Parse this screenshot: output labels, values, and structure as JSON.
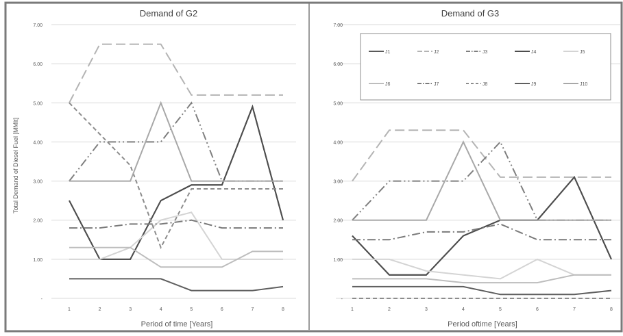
{
  "chart_data": [
    {
      "type": "line",
      "title": "Demand of G2",
      "xlabel": "Period of time [Years]",
      "ylabel": "Total Demand of Diesel Fuel [MMlt]",
      "x": [
        1,
        2,
        3,
        4,
        5,
        6,
        7,
        8
      ],
      "ylim": [
        0,
        7
      ],
      "yticks": [
        "-",
        "1.00",
        "2.00",
        "3.00",
        "4.00",
        "5.00",
        "6.00",
        "7.00"
      ],
      "grid": true,
      "series": [
        {
          "name": "J1",
          "values": [
            2.5,
            1.0,
            1.0,
            2.5,
            2.9,
            2.9,
            4.9,
            2.0
          ]
        },
        {
          "name": "J2",
          "values": [
            5.0,
            6.5,
            6.5,
            6.5,
            5.2,
            5.2,
            5.2,
            5.2
          ]
        },
        {
          "name": "J3",
          "values": [
            3.0,
            4.0,
            4.0,
            4.0,
            5.0,
            3.0,
            3.0,
            3.0
          ]
        },
        {
          "name": "J4",
          "values": [
            2.5,
            1.0,
            1.0,
            2.5,
            2.9,
            2.9,
            4.9,
            2.0
          ]
        },
        {
          "name": "J5",
          "values": [
            1.0,
            1.0,
            1.3,
            2.0,
            2.2,
            1.0,
            1.0,
            1.0
          ]
        },
        {
          "name": "J6",
          "values": [
            1.3,
            1.3,
            1.3,
            0.8,
            0.8,
            0.8,
            1.2,
            1.2
          ]
        },
        {
          "name": "J7",
          "values": [
            1.8,
            1.8,
            1.9,
            1.9,
            2.0,
            1.8,
            1.8,
            1.8
          ]
        },
        {
          "name": "J8",
          "values": [
            5.0,
            4.2,
            3.4,
            1.3,
            2.8,
            2.8,
            2.8,
            2.8
          ]
        },
        {
          "name": "J9",
          "values": [
            0.5,
            0.5,
            0.5,
            0.5,
            0.2,
            0.2,
            0.2,
            0.3
          ]
        },
        {
          "name": "J10",
          "values": [
            3.0,
            3.0,
            3.0,
            5.0,
            3.0,
            3.0,
            3.0,
            3.0
          ]
        }
      ]
    },
    {
      "type": "line",
      "title": "Demand of G3",
      "xlabel": "Period oftime [Years]",
      "ylabel": "",
      "x": [
        1,
        2,
        3,
        4,
        5,
        6,
        7,
        8
      ],
      "ylim": [
        0,
        7
      ],
      "yticks": [
        "-",
        "1.00",
        "2.00",
        "3.00",
        "4.00",
        "5.00",
        "6.00",
        "7.00"
      ],
      "grid": true,
      "legend": "top-right",
      "series": [
        {
          "name": "J1",
          "values": [
            1.6,
            0.6,
            0.6,
            1.6,
            2.0,
            2.0,
            3.1,
            1.0
          ]
        },
        {
          "name": "J2",
          "values": [
            3.0,
            4.3,
            4.3,
            4.3,
            3.1,
            3.1,
            3.1,
            3.1
          ]
        },
        {
          "name": "J3",
          "values": [
            2.0,
            3.0,
            3.0,
            3.0,
            4.0,
            2.0,
            2.0,
            2.0
          ]
        },
        {
          "name": "J4",
          "values": [
            1.6,
            0.6,
            0.6,
            1.6,
            2.0,
            2.0,
            3.1,
            1.0
          ]
        },
        {
          "name": "J5",
          "values": [
            1.0,
            1.0,
            0.7,
            0.6,
            0.5,
            1.0,
            0.6,
            0.6
          ]
        },
        {
          "name": "J6",
          "values": [
            0.5,
            0.5,
            0.5,
            0.4,
            0.4,
            0.4,
            0.6,
            0.6
          ]
        },
        {
          "name": "J7",
          "values": [
            1.5,
            1.5,
            1.7,
            1.7,
            1.9,
            1.5,
            1.5,
            1.5
          ]
        },
        {
          "name": "J8",
          "values": [
            0.0,
            0.0,
            0.0,
            0.0,
            0.0,
            0.0,
            0.0,
            0.0
          ]
        },
        {
          "name": "J9",
          "values": [
            0.3,
            0.3,
            0.3,
            0.3,
            0.1,
            0.1,
            0.1,
            0.2
          ]
        },
        {
          "name": "J10",
          "values": [
            2.0,
            2.0,
            2.0,
            4.0,
            2.0,
            2.0,
            2.0,
            2.0
          ]
        }
      ]
    }
  ],
  "styles": {
    "J1": {
      "color": "#5a5a5a",
      "dash": ""
    },
    "J2": {
      "color": "#b4b4b4",
      "dash": "14 6"
    },
    "J3": {
      "color": "#7f7f7f",
      "dash": "12 4 2 4 2 4"
    },
    "J4": {
      "color": "#4d4d4d",
      "dash": ""
    },
    "J5": {
      "color": "#d4d4d4",
      "dash": ""
    },
    "J6": {
      "color": "#bdbdbd",
      "dash": ""
    },
    "J7": {
      "color": "#7a7a7a",
      "dash": "12 4 2 4"
    },
    "J8": {
      "color": "#8c8c8c",
      "dash": "6 4"
    },
    "J9": {
      "color": "#5f5f5f",
      "dash": ""
    },
    "J10": {
      "color": "#a8a8a8",
      "dash": ""
    }
  },
  "frame_color": "#7a7a7a",
  "grid_color": "#d9d9d9"
}
